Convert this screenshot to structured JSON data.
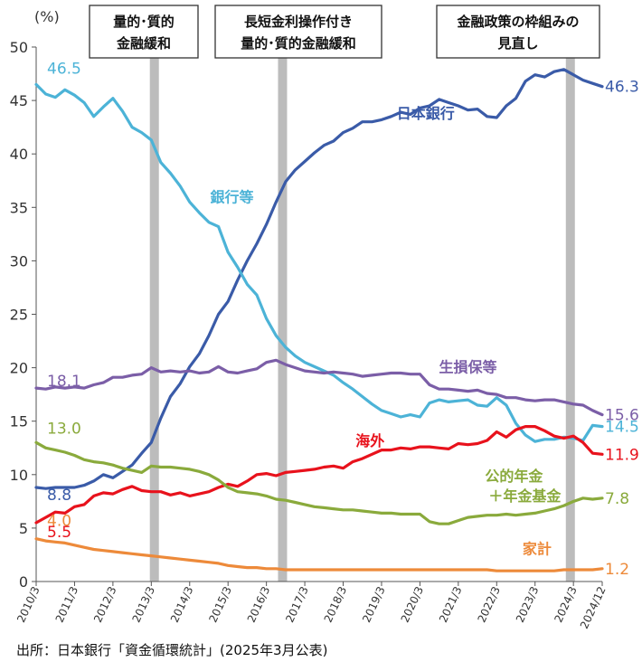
{
  "chart_data": {
    "type": "line",
    "unit_label": "(%)",
    "ylim": [
      0,
      50
    ],
    "yticks": [
      0,
      5,
      10,
      15,
      20,
      25,
      30,
      35,
      40,
      45,
      50
    ],
    "xlim": [
      2010.25,
      2025.0
    ],
    "xtick_labels": [
      "2010/3",
      "2011/3",
      "2012/3",
      "2013/3",
      "2014/3",
      "2015/3",
      "2016/3",
      "2017/3",
      "2018/3",
      "2019/3",
      "2020/3",
      "2021/3",
      "2022/3",
      "2023/3",
      "2024/3",
      "2024/12"
    ],
    "xtick_values": [
      2010.25,
      2011.25,
      2012.25,
      2013.25,
      2014.25,
      2015.25,
      2016.25,
      2017.25,
      2018.25,
      2019.25,
      2020.25,
      2021.25,
      2022.25,
      2023.25,
      2024.25,
      2025.0
    ],
    "grid": false,
    "annotations": [
      {
        "x": 2013.33,
        "lines": [
          "量的･質的",
          "金融緩和"
        ]
      },
      {
        "x": 2016.67,
        "lines": [
          "長短金利操作付き",
          "量的･質的金融緩和"
        ]
      },
      {
        "x": 2024.17,
        "lines": [
          "金融政策の枠組みの",
          "見直し"
        ]
      }
    ],
    "series": [
      {
        "name": "日本銀行",
        "color": "#3a5ba8",
        "start_label": "8.8",
        "end_label": "46.3",
        "x": [
          2010.25,
          2010.5,
          2010.75,
          2011.0,
          2011.25,
          2011.5,
          2011.75,
          2012.0,
          2012.25,
          2012.5,
          2012.75,
          2013.0,
          2013.25,
          2013.5,
          2013.75,
          2014.0,
          2014.25,
          2014.5,
          2014.75,
          2015.0,
          2015.25,
          2015.5,
          2015.75,
          2016.0,
          2016.25,
          2016.5,
          2016.75,
          2017.0,
          2017.25,
          2017.5,
          2017.75,
          2018.0,
          2018.25,
          2018.5,
          2018.75,
          2019.0,
          2019.25,
          2019.5,
          2019.75,
          2020.0,
          2020.25,
          2020.5,
          2020.75,
          2021.0,
          2021.25,
          2021.5,
          2021.75,
          2022.0,
          2022.25,
          2022.5,
          2022.75,
          2023.0,
          2023.25,
          2023.5,
          2023.75,
          2024.0,
          2024.25,
          2024.5,
          2024.75,
          2025.0
        ],
        "y": [
          8.8,
          8.7,
          8.8,
          8.8,
          8.8,
          9.0,
          9.4,
          10.0,
          9.7,
          10.3,
          10.9,
          12.0,
          13.0,
          15.3,
          17.3,
          18.5,
          20.1,
          21.3,
          23.0,
          25.0,
          26.2,
          28.2,
          30.0,
          31.6,
          33.4,
          35.5,
          37.4,
          38.5,
          39.3,
          40.1,
          40.8,
          41.2,
          42.0,
          42.4,
          43.0,
          43.0,
          43.2,
          43.5,
          43.9,
          43.7,
          44.3,
          44.5,
          45.1,
          44.8,
          44.5,
          44.1,
          44.2,
          43.5,
          43.4,
          44.5,
          45.2,
          46.8,
          47.4,
          47.2,
          47.7,
          47.9,
          47.4,
          46.9,
          46.6,
          46.3
        ]
      },
      {
        "name": "銀行等",
        "color": "#4cb3d7",
        "start_label": "46.5",
        "end_label": "14.5",
        "x": [
          2010.25,
          2010.5,
          2010.75,
          2011.0,
          2011.25,
          2011.5,
          2011.75,
          2012.0,
          2012.25,
          2012.5,
          2012.75,
          2013.0,
          2013.25,
          2013.5,
          2013.75,
          2014.0,
          2014.25,
          2014.5,
          2014.75,
          2015.0,
          2015.25,
          2015.5,
          2015.75,
          2016.0,
          2016.25,
          2016.5,
          2016.75,
          2017.0,
          2017.25,
          2017.5,
          2017.75,
          2018.0,
          2018.25,
          2018.5,
          2018.75,
          2019.0,
          2019.25,
          2019.5,
          2019.75,
          2020.0,
          2020.25,
          2020.5,
          2020.75,
          2021.0,
          2021.25,
          2021.5,
          2021.75,
          2022.0,
          2022.25,
          2022.5,
          2022.75,
          2023.0,
          2023.25,
          2023.5,
          2023.75,
          2024.0,
          2024.25,
          2024.5,
          2024.75,
          2025.0
        ],
        "y": [
          46.5,
          45.6,
          45.3,
          46.0,
          45.5,
          44.8,
          43.5,
          44.4,
          45.2,
          44.0,
          42.5,
          42.0,
          41.3,
          39.2,
          38.2,
          37.0,
          35.5,
          34.5,
          33.6,
          33.2,
          30.8,
          29.4,
          27.8,
          26.8,
          24.6,
          23.0,
          21.9,
          21.1,
          20.5,
          20.1,
          19.7,
          19.3,
          18.6,
          18.0,
          17.3,
          16.6,
          16.0,
          15.7,
          15.4,
          15.6,
          15.4,
          16.7,
          17.0,
          16.8,
          16.9,
          17.0,
          16.5,
          16.4,
          17.2,
          16.5,
          14.8,
          13.7,
          13.1,
          13.3,
          13.3,
          13.5,
          13.4,
          13.2,
          14.6,
          14.5
        ]
      },
      {
        "name": "生損保等",
        "color": "#7b5ea7",
        "start_label": "18.1",
        "end_label": "15.6",
        "x": [
          2010.25,
          2010.5,
          2010.75,
          2011.0,
          2011.25,
          2011.5,
          2011.75,
          2012.0,
          2012.25,
          2012.5,
          2012.75,
          2013.0,
          2013.25,
          2013.5,
          2013.75,
          2014.0,
          2014.25,
          2014.5,
          2014.75,
          2015.0,
          2015.25,
          2015.5,
          2015.75,
          2016.0,
          2016.25,
          2016.5,
          2016.75,
          2017.0,
          2017.25,
          2017.5,
          2017.75,
          2018.0,
          2018.25,
          2018.5,
          2018.75,
          2019.0,
          2019.25,
          2019.5,
          2019.75,
          2020.0,
          2020.25,
          2020.5,
          2020.75,
          2021.0,
          2021.25,
          2021.5,
          2021.75,
          2022.0,
          2022.25,
          2022.5,
          2022.75,
          2023.0,
          2023.25,
          2023.5,
          2023.75,
          2024.0,
          2024.25,
          2024.5,
          2024.75,
          2025.0
        ],
        "y": [
          18.1,
          18.0,
          18.2,
          18.1,
          18.2,
          18.1,
          18.4,
          18.6,
          19.1,
          19.1,
          19.3,
          19.4,
          20.0,
          19.6,
          19.7,
          19.6,
          19.7,
          19.5,
          19.6,
          20.1,
          19.6,
          19.5,
          19.7,
          19.9,
          20.5,
          20.7,
          20.3,
          20.0,
          19.7,
          19.6,
          19.5,
          19.6,
          19.5,
          19.4,
          19.2,
          19.3,
          19.4,
          19.5,
          19.5,
          19.4,
          19.4,
          18.4,
          18.0,
          18.0,
          17.9,
          17.8,
          17.9,
          17.6,
          17.5,
          17.2,
          17.2,
          17.0,
          16.9,
          17.0,
          17.0,
          16.8,
          16.6,
          16.5,
          16.0,
          15.6
        ]
      },
      {
        "name": "海外",
        "color": "#e8121c",
        "start_label": "5.5",
        "end_label": "11.9",
        "x": [
          2010.25,
          2010.5,
          2010.75,
          2011.0,
          2011.25,
          2011.5,
          2011.75,
          2012.0,
          2012.25,
          2012.5,
          2012.75,
          2013.0,
          2013.25,
          2013.5,
          2013.75,
          2014.0,
          2014.25,
          2014.5,
          2014.75,
          2015.0,
          2015.25,
          2015.5,
          2015.75,
          2016.0,
          2016.25,
          2016.5,
          2016.75,
          2017.0,
          2017.25,
          2017.5,
          2017.75,
          2018.0,
          2018.25,
          2018.5,
          2018.75,
          2019.0,
          2019.25,
          2019.5,
          2019.75,
          2020.0,
          2020.25,
          2020.5,
          2020.75,
          2021.0,
          2021.25,
          2021.5,
          2021.75,
          2022.0,
          2022.25,
          2022.5,
          2022.75,
          2023.0,
          2023.25,
          2023.5,
          2023.75,
          2024.0,
          2024.25,
          2024.5,
          2024.75,
          2025.0
        ],
        "y": [
          5.5,
          6.0,
          6.5,
          6.4,
          7.0,
          7.2,
          8.0,
          8.3,
          8.2,
          8.6,
          8.9,
          8.5,
          8.4,
          8.4,
          8.1,
          8.3,
          8.0,
          8.2,
          8.4,
          8.8,
          9.1,
          8.9,
          9.4,
          10.0,
          10.1,
          9.9,
          10.2,
          10.3,
          10.4,
          10.5,
          10.7,
          10.8,
          10.6,
          11.2,
          11.5,
          11.9,
          12.3,
          12.3,
          12.5,
          12.4,
          12.6,
          12.6,
          12.5,
          12.4,
          12.9,
          12.8,
          12.9,
          13.2,
          14.0,
          13.5,
          14.2,
          14.5,
          14.5,
          14.1,
          13.6,
          13.4,
          13.6,
          13.0,
          12.0,
          11.9
        ]
      },
      {
        "name": "公的年金＋年金基金",
        "label_lines": [
          "公的年金",
          "＋年金基金"
        ],
        "color": "#8aaa3c",
        "start_label": "13.0",
        "end_label": "7.8",
        "x": [
          2010.25,
          2010.5,
          2010.75,
          2011.0,
          2011.25,
          2011.5,
          2011.75,
          2012.0,
          2012.25,
          2012.5,
          2012.75,
          2013.0,
          2013.25,
          2013.5,
          2013.75,
          2014.0,
          2014.25,
          2014.5,
          2014.75,
          2015.0,
          2015.25,
          2015.5,
          2015.75,
          2016.0,
          2016.25,
          2016.5,
          2016.75,
          2017.0,
          2017.25,
          2017.5,
          2017.75,
          2018.0,
          2018.25,
          2018.5,
          2018.75,
          2019.0,
          2019.25,
          2019.5,
          2019.75,
          2020.0,
          2020.25,
          2020.5,
          2020.75,
          2021.0,
          2021.25,
          2021.5,
          2021.75,
          2022.0,
          2022.25,
          2022.5,
          2022.75,
          2023.0,
          2023.25,
          2023.5,
          2023.75,
          2024.0,
          2024.25,
          2024.5,
          2024.75,
          2025.0
        ],
        "y": [
          13.0,
          12.5,
          12.3,
          12.1,
          11.8,
          11.4,
          11.2,
          11.1,
          10.9,
          10.6,
          10.4,
          10.2,
          10.8,
          10.7,
          10.7,
          10.6,
          10.5,
          10.3,
          10.0,
          9.5,
          8.8,
          8.4,
          8.3,
          8.2,
          8.0,
          7.7,
          7.6,
          7.4,
          7.2,
          7.0,
          6.9,
          6.8,
          6.7,
          6.7,
          6.6,
          6.5,
          6.4,
          6.4,
          6.3,
          6.3,
          6.3,
          5.6,
          5.4,
          5.4,
          5.7,
          6.0,
          6.1,
          6.2,
          6.2,
          6.3,
          6.2,
          6.3,
          6.4,
          6.6,
          6.8,
          7.1,
          7.5,
          7.8,
          7.7,
          7.8
        ]
      },
      {
        "name": "家計",
        "color": "#ed8a3a",
        "start_label": "4.0",
        "end_label": "1.2",
        "x": [
          2010.25,
          2010.5,
          2010.75,
          2011.0,
          2011.25,
          2011.5,
          2011.75,
          2012.0,
          2012.25,
          2012.5,
          2012.75,
          2013.0,
          2013.25,
          2013.5,
          2013.75,
          2014.0,
          2014.25,
          2014.5,
          2014.75,
          2015.0,
          2015.25,
          2015.5,
          2015.75,
          2016.0,
          2016.25,
          2016.5,
          2016.75,
          2017.0,
          2017.25,
          2017.5,
          2017.75,
          2018.0,
          2018.25,
          2018.5,
          2018.75,
          2019.0,
          2019.25,
          2019.5,
          2019.75,
          2020.0,
          2020.25,
          2020.5,
          2020.75,
          2021.0,
          2021.25,
          2021.5,
          2021.75,
          2022.0,
          2022.25,
          2022.5,
          2022.75,
          2023.0,
          2023.25,
          2023.5,
          2023.75,
          2024.0,
          2024.25,
          2024.5,
          2024.75,
          2025.0
        ],
        "y": [
          4.0,
          3.8,
          3.7,
          3.6,
          3.4,
          3.2,
          3.0,
          2.9,
          2.8,
          2.7,
          2.6,
          2.5,
          2.4,
          2.3,
          2.2,
          2.1,
          2.0,
          1.9,
          1.8,
          1.7,
          1.5,
          1.4,
          1.3,
          1.3,
          1.2,
          1.2,
          1.1,
          1.1,
          1.1,
          1.1,
          1.1,
          1.1,
          1.1,
          1.1,
          1.1,
          1.1,
          1.1,
          1.1,
          1.1,
          1.1,
          1.1,
          1.1,
          1.1,
          1.1,
          1.1,
          1.1,
          1.1,
          1.1,
          1.0,
          1.0,
          1.0,
          1.0,
          1.0,
          1.0,
          1.0,
          1.1,
          1.1,
          1.1,
          1.1,
          1.2
        ]
      }
    ]
  },
  "source_text": "出所：日本銀行「資金循環統計」(2025年3月公表)"
}
